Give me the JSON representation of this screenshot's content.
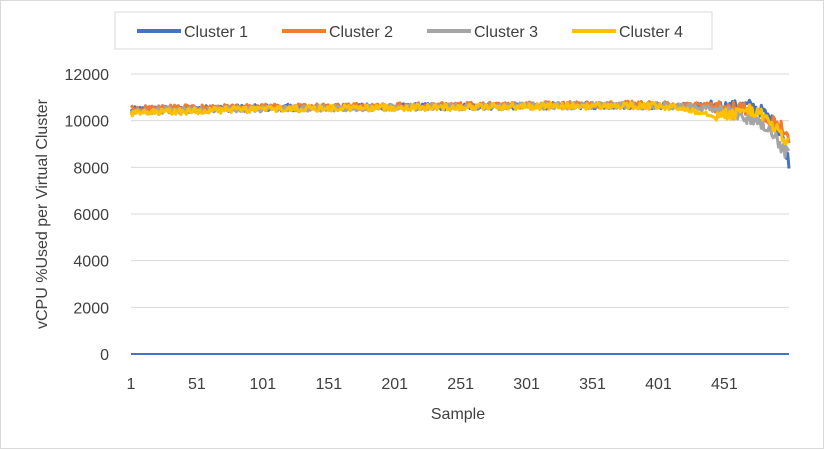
{
  "chart_data": {
    "type": "line",
    "title": "",
    "xlabel": "Sample",
    "ylabel": "vCPU %Used per Virtual Cluster",
    "ylim": [
      0,
      12000
    ],
    "y_ticks": [
      0,
      2000,
      4000,
      6000,
      8000,
      10000,
      12000
    ],
    "x_ticks": [
      1,
      51,
      101,
      151,
      201,
      251,
      301,
      351,
      401,
      451
    ],
    "x_range": [
      1,
      500
    ],
    "grid": true,
    "legend_position": "top",
    "series": [
      {
        "name": "Cluster 1",
        "color": "#4472C4",
        "points": [
          [
            1,
            10450
          ],
          [
            20,
            10480
          ],
          [
            40,
            10500
          ],
          [
            60,
            10520
          ],
          [
            80,
            10540
          ],
          [
            100,
            10550
          ],
          [
            120,
            10560
          ],
          [
            140,
            10570
          ],
          [
            160,
            10580
          ],
          [
            180,
            10580
          ],
          [
            200,
            10590
          ],
          [
            220,
            10600
          ],
          [
            240,
            10600
          ],
          [
            260,
            10610
          ],
          [
            280,
            10620
          ],
          [
            300,
            10630
          ],
          [
            320,
            10640
          ],
          [
            340,
            10640
          ],
          [
            360,
            10650
          ],
          [
            380,
            10650
          ],
          [
            400,
            10640
          ],
          [
            420,
            10630
          ],
          [
            440,
            10600
          ],
          [
            450,
            10600
          ],
          [
            460,
            10620
          ],
          [
            470,
            10650
          ],
          [
            480,
            10400
          ],
          [
            490,
            9800
          ],
          [
            495,
            9300
          ],
          [
            500,
            8200
          ]
        ]
      },
      {
        "name": "Cluster 2",
        "color": "#ED7D31",
        "points": [
          [
            1,
            10500
          ],
          [
            20,
            10520
          ],
          [
            40,
            10540
          ],
          [
            60,
            10550
          ],
          [
            80,
            10560
          ],
          [
            100,
            10570
          ],
          [
            120,
            10580
          ],
          [
            140,
            10590
          ],
          [
            160,
            10600
          ],
          [
            180,
            10610
          ],
          [
            200,
            10620
          ],
          [
            220,
            10630
          ],
          [
            240,
            10640
          ],
          [
            260,
            10650
          ],
          [
            280,
            10660
          ],
          [
            300,
            10670
          ],
          [
            320,
            10680
          ],
          [
            340,
            10690
          ],
          [
            360,
            10700
          ],
          [
            380,
            10700
          ],
          [
            400,
            10680
          ],
          [
            420,
            10660
          ],
          [
            440,
            10620
          ],
          [
            460,
            10520
          ],
          [
            470,
            10450
          ],
          [
            480,
            10100
          ],
          [
            490,
            9900
          ],
          [
            495,
            9800
          ],
          [
            500,
            9300
          ]
        ]
      },
      {
        "name": "Cluster 3",
        "color": "#A5A5A5",
        "points": [
          [
            1,
            10380
          ],
          [
            20,
            10420
          ],
          [
            40,
            10450
          ],
          [
            60,
            10470
          ],
          [
            80,
            10490
          ],
          [
            100,
            10510
          ],
          [
            120,
            10520
          ],
          [
            140,
            10530
          ],
          [
            160,
            10550
          ],
          [
            180,
            10560
          ],
          [
            200,
            10570
          ],
          [
            220,
            10580
          ],
          [
            240,
            10590
          ],
          [
            260,
            10600
          ],
          [
            280,
            10610
          ],
          [
            300,
            10620
          ],
          [
            320,
            10630
          ],
          [
            340,
            10640
          ],
          [
            360,
            10650
          ],
          [
            380,
            10650
          ],
          [
            400,
            10640
          ],
          [
            420,
            10600
          ],
          [
            440,
            10500
          ],
          [
            460,
            10300
          ],
          [
            470,
            10100
          ],
          [
            480,
            9900
          ],
          [
            490,
            9300
          ],
          [
            495,
            8800
          ],
          [
            500,
            8500
          ]
        ]
      },
      {
        "name": "Cluster 4",
        "color": "#FFC000",
        "points": [
          [
            1,
            10300
          ],
          [
            20,
            10360
          ],
          [
            40,
            10400
          ],
          [
            60,
            10440
          ],
          [
            80,
            10470
          ],
          [
            100,
            10490
          ],
          [
            120,
            10510
          ],
          [
            140,
            10530
          ],
          [
            160,
            10540
          ],
          [
            180,
            10550
          ],
          [
            200,
            10560
          ],
          [
            220,
            10570
          ],
          [
            240,
            10580
          ],
          [
            260,
            10590
          ],
          [
            280,
            10600
          ],
          [
            300,
            10610
          ],
          [
            320,
            10620
          ],
          [
            340,
            10620
          ],
          [
            360,
            10630
          ],
          [
            380,
            10630
          ],
          [
            400,
            10610
          ],
          [
            420,
            10520
          ],
          [
            440,
            10300
          ],
          [
            450,
            10250
          ],
          [
            460,
            10300
          ],
          [
            470,
            10500
          ],
          [
            480,
            10200
          ],
          [
            490,
            9700
          ],
          [
            495,
            9300
          ],
          [
            500,
            9000
          ]
        ]
      }
    ]
  }
}
